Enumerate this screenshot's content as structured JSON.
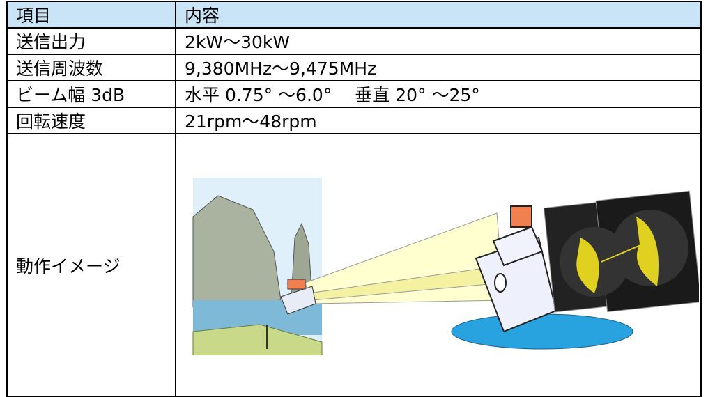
{
  "table": {
    "header": [
      "項目",
      "内容"
    ],
    "rows": [
      [
        "送信出力",
        "2kW～30kW"
      ],
      [
        "送信周波数",
        "9,380MHz～9,475MHz"
      ],
      [
        "ビーム幅 3dB",
        "水平 0.75° ～6.0°　 垂直 20° ～25°"
      ],
      [
        "回転速度",
        "21rpm～48rpm"
      ],
      [
        "動作イメージ"
      ]
    ]
  }
}
